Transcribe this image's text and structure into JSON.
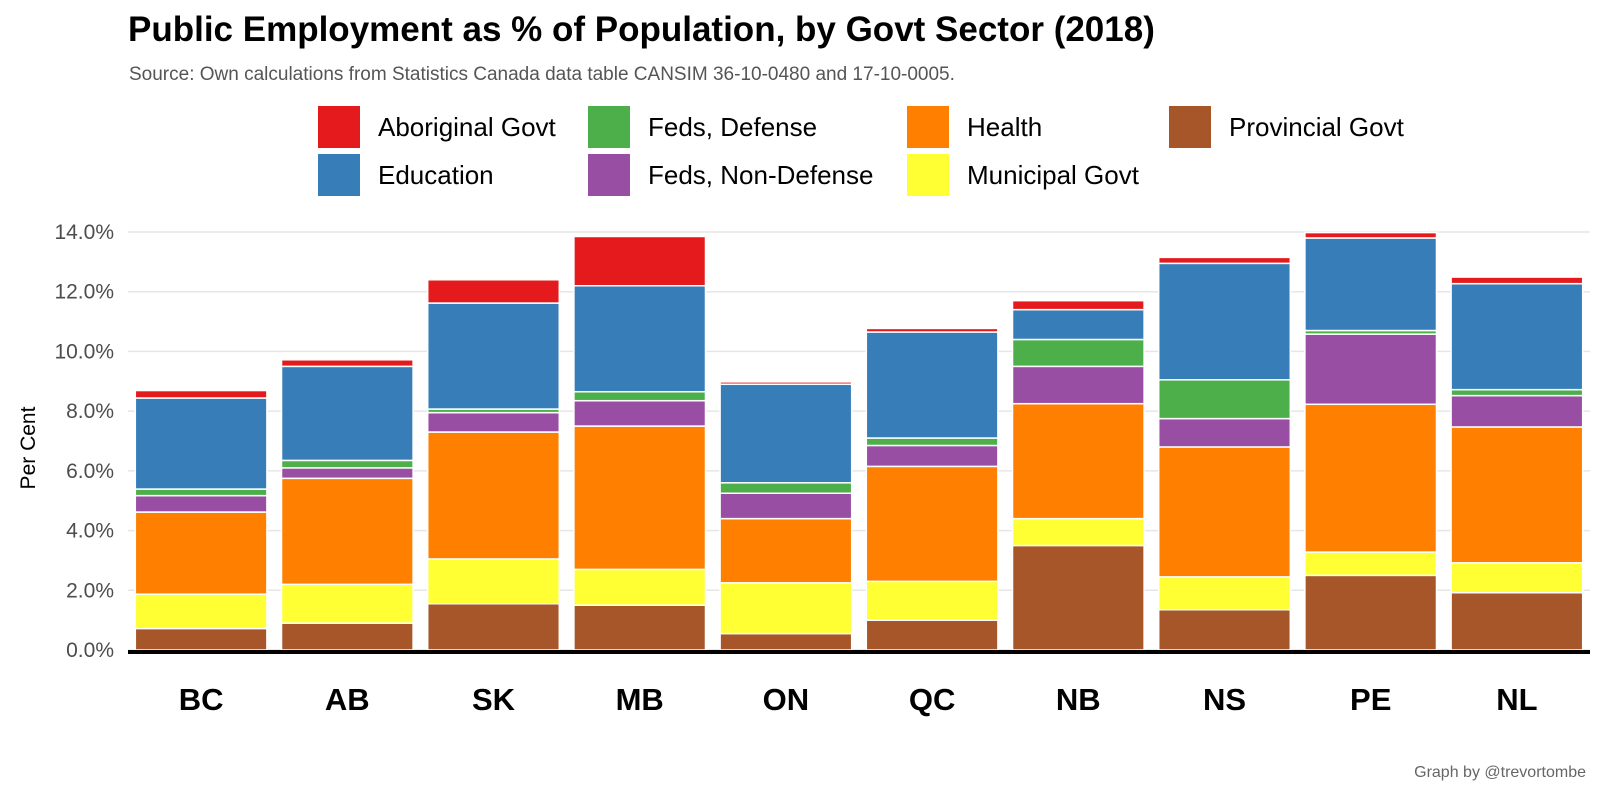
{
  "chart_data": {
    "type": "bar",
    "stacked": true,
    "title": "Public Employment as % of Population, by Govt Sector (2018)",
    "subtitle": "Source: Own calculations from Statistics Canada data table CANSIM 36-10-0480 and 17-10-0005.",
    "caption": "Graph by @trevortombe",
    "xlabel": "",
    "ylabel": "Per Cent",
    "ylim": [
      0,
      14
    ],
    "y_ticks": [
      "0.0%",
      "2.0%",
      "4.0%",
      "6.0%",
      "8.0%",
      "10.0%",
      "12.0%",
      "14.0%"
    ],
    "grid": true,
    "legend_position": "top",
    "categories": [
      "BC",
      "AB",
      "SK",
      "MB",
      "ON",
      "QC",
      "NB",
      "NS",
      "PE",
      "NL"
    ],
    "legend_order": [
      "Aboriginal Govt",
      "Feds, Defense",
      "Health",
      "Provincial Govt",
      "Education",
      "Feds, Non-Defense",
      "Municipal Govt"
    ],
    "series": [
      {
        "name": "Provincial Govt",
        "color": "#A65628",
        "values": [
          0.72,
          0.9,
          1.55,
          1.5,
          0.55,
          1.0,
          3.5,
          1.35,
          2.5,
          1.92
        ]
      },
      {
        "name": "Municipal Govt",
        "color": "#FFFF33",
        "values": [
          1.15,
          1.3,
          1.5,
          1.2,
          1.7,
          1.3,
          0.9,
          1.1,
          0.78,
          1.0
        ]
      },
      {
        "name": "Health",
        "color": "#FF7F00",
        "values": [
          2.75,
          3.55,
          4.25,
          4.8,
          2.15,
          3.85,
          3.85,
          4.35,
          4.95,
          4.55
        ]
      },
      {
        "name": "Feds, Non-Defense",
        "color": "#984EA3",
        "values": [
          0.55,
          0.35,
          0.65,
          0.85,
          0.85,
          0.7,
          1.25,
          0.95,
          2.35,
          1.05
        ]
      },
      {
        "name": "Feds, Defense",
        "color": "#4DAF4A",
        "values": [
          0.22,
          0.25,
          0.12,
          0.3,
          0.35,
          0.25,
          0.9,
          1.3,
          0.12,
          0.2
        ]
      },
      {
        "name": "Education",
        "color": "#377EB8",
        "values": [
          3.05,
          3.15,
          3.55,
          3.55,
          3.3,
          3.55,
          1.0,
          3.9,
          3.1,
          3.55
        ]
      },
      {
        "name": "Aboriginal Govt",
        "color": "#E41A1C",
        "values": [
          0.25,
          0.22,
          0.78,
          1.65,
          0.08,
          0.12,
          0.3,
          0.2,
          0.18,
          0.22
        ]
      }
    ]
  }
}
